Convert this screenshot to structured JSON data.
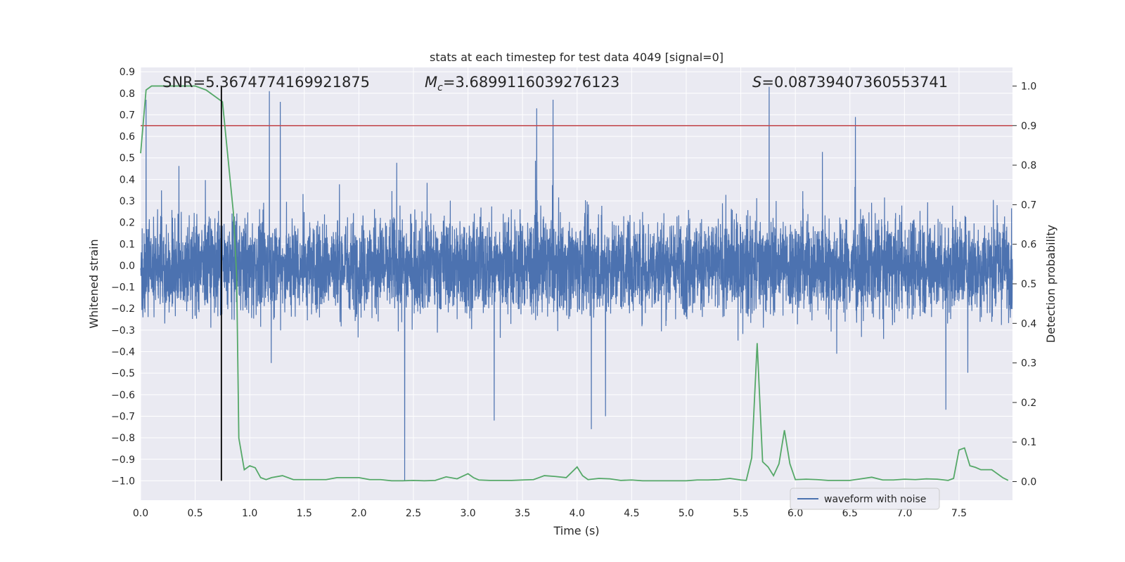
{
  "chart_data": {
    "type": "line",
    "title": "stats at each timestep for test data 4049 [signal=0]",
    "xlabel": "Time (s)",
    "ylabel": "Whitened strain",
    "y2label": "Detection probability",
    "xlim": [
      0.0,
      7.99
    ],
    "ylim": [
      -1.09,
      0.92
    ],
    "y2lim": [
      -0.047,
      1.047
    ],
    "xticks": [
      "0.0",
      "0.5",
      "1.0",
      "1.5",
      "2.0",
      "2.5",
      "3.0",
      "3.5",
      "4.0",
      "4.5",
      "5.0",
      "5.5",
      "6.0",
      "6.5",
      "7.0",
      "7.5"
    ],
    "yticks": [
      "0.9",
      "0.8",
      "0.7",
      "0.6",
      "0.5",
      "0.4",
      "0.3",
      "0.2",
      "0.1",
      "0.0",
      "−0.1",
      "−0.2",
      "−0.3",
      "−0.4",
      "−0.5",
      "−0.6",
      "−0.7",
      "−0.8",
      "−0.9",
      "−1.0"
    ],
    "y2ticks": [
      "0.0",
      "0.1",
      "0.2",
      "0.3",
      "0.4",
      "0.5",
      "0.6",
      "0.7",
      "0.8",
      "0.9",
      "1.0"
    ],
    "grid": true,
    "legend_placement": "lower-right",
    "annotations": {
      "snr": "SNR=5.3674774169921875",
      "mc": "=3.6899116039276123",
      "mc_symbol": "M",
      "mc_sub": "c",
      "s": "=0.08739407360553741",
      "s_symbol": "S"
    },
    "series": [
      {
        "name": "waveform with noise",
        "axis": "left",
        "color": "#4c72b0",
        "description_level": "noise-like, typical amplitude ±0.35, spikes to ±0.8",
        "notable_peaks": [
          {
            "x": 0.05,
            "y": 0.77
          },
          {
            "x": 1.18,
            "y": 0.81
          },
          {
            "x": 1.28,
            "y": 0.76
          },
          {
            "x": 3.63,
            "y": 0.73
          },
          {
            "x": 3.78,
            "y": 0.77
          },
          {
            "x": 5.76,
            "y": 0.83
          },
          {
            "x": 6.55,
            "y": 0.69
          },
          {
            "x": 2.42,
            "y": -1.0
          },
          {
            "x": 3.24,
            "y": -0.72
          },
          {
            "x": 4.13,
            "y": -0.76
          },
          {
            "x": 4.26,
            "y": -0.7
          },
          {
            "x": 7.38,
            "y": -0.67
          }
        ]
      },
      {
        "name": "Detection probability",
        "axis": "right",
        "color": "#55a868",
        "x": [
          0.0,
          0.05,
          0.1,
          0.15,
          0.2,
          0.3,
          0.4,
          0.5,
          0.6,
          0.7,
          0.75,
          0.8,
          0.85,
          0.88,
          0.9,
          0.95,
          1.0,
          1.05,
          1.1,
          1.15,
          1.2,
          1.3,
          1.4,
          1.5,
          1.6,
          1.7,
          1.8,
          1.9,
          2.0,
          2.1,
          2.2,
          2.3,
          2.4,
          2.5,
          2.6,
          2.7,
          2.8,
          2.9,
          3.0,
          3.05,
          3.1,
          3.2,
          3.3,
          3.4,
          3.5,
          3.6,
          3.7,
          3.8,
          3.9,
          4.0,
          4.05,
          4.1,
          4.2,
          4.3,
          4.4,
          4.5,
          4.6,
          4.7,
          4.8,
          4.9,
          5.0,
          5.1,
          5.2,
          5.3,
          5.4,
          5.5,
          5.55,
          5.6,
          5.65,
          5.7,
          5.75,
          5.8,
          5.85,
          5.9,
          5.95,
          6.0,
          6.1,
          6.2,
          6.3,
          6.4,
          6.5,
          6.6,
          6.7,
          6.8,
          6.9,
          7.0,
          7.1,
          7.2,
          7.3,
          7.4,
          7.45,
          7.5,
          7.55,
          7.6,
          7.65,
          7.7,
          7.8,
          7.9,
          7.95
        ],
        "y": [
          0.83,
          0.99,
          1.0,
          1.0,
          1.0,
          1.0,
          1.0,
          1.0,
          0.99,
          0.97,
          0.96,
          0.82,
          0.68,
          0.52,
          0.11,
          0.03,
          0.04,
          0.035,
          0.01,
          0.005,
          0.01,
          0.015,
          0.005,
          0.005,
          0.005,
          0.005,
          0.01,
          0.01,
          0.01,
          0.005,
          0.005,
          0.002,
          0.002,
          0.003,
          0.002,
          0.003,
          0.012,
          0.007,
          0.02,
          0.01,
          0.004,
          0.003,
          0.003,
          0.003,
          0.004,
          0.005,
          0.015,
          0.013,
          0.01,
          0.037,
          0.015,
          0.005,
          0.008,
          0.007,
          0.003,
          0.004,
          0.002,
          0.002,
          0.002,
          0.002,
          0.002,
          0.004,
          0.004,
          0.005,
          0.008,
          0.004,
          0.003,
          0.06,
          0.35,
          0.05,
          0.037,
          0.015,
          0.045,
          0.13,
          0.045,
          0.005,
          0.006,
          0.005,
          0.003,
          0.003,
          0.003,
          0.007,
          0.011,
          0.004,
          0.004,
          0.006,
          0.005,
          0.007,
          0.006,
          0.003,
          0.008,
          0.08,
          0.085,
          0.04,
          0.036,
          0.03,
          0.03,
          0.01,
          0.003
        ]
      }
    ],
    "threshold_line": {
      "axis": "right",
      "y": 0.9,
      "color": "#c44e52"
    },
    "marker_line": {
      "x": 0.74,
      "color": "#000000"
    }
  }
}
